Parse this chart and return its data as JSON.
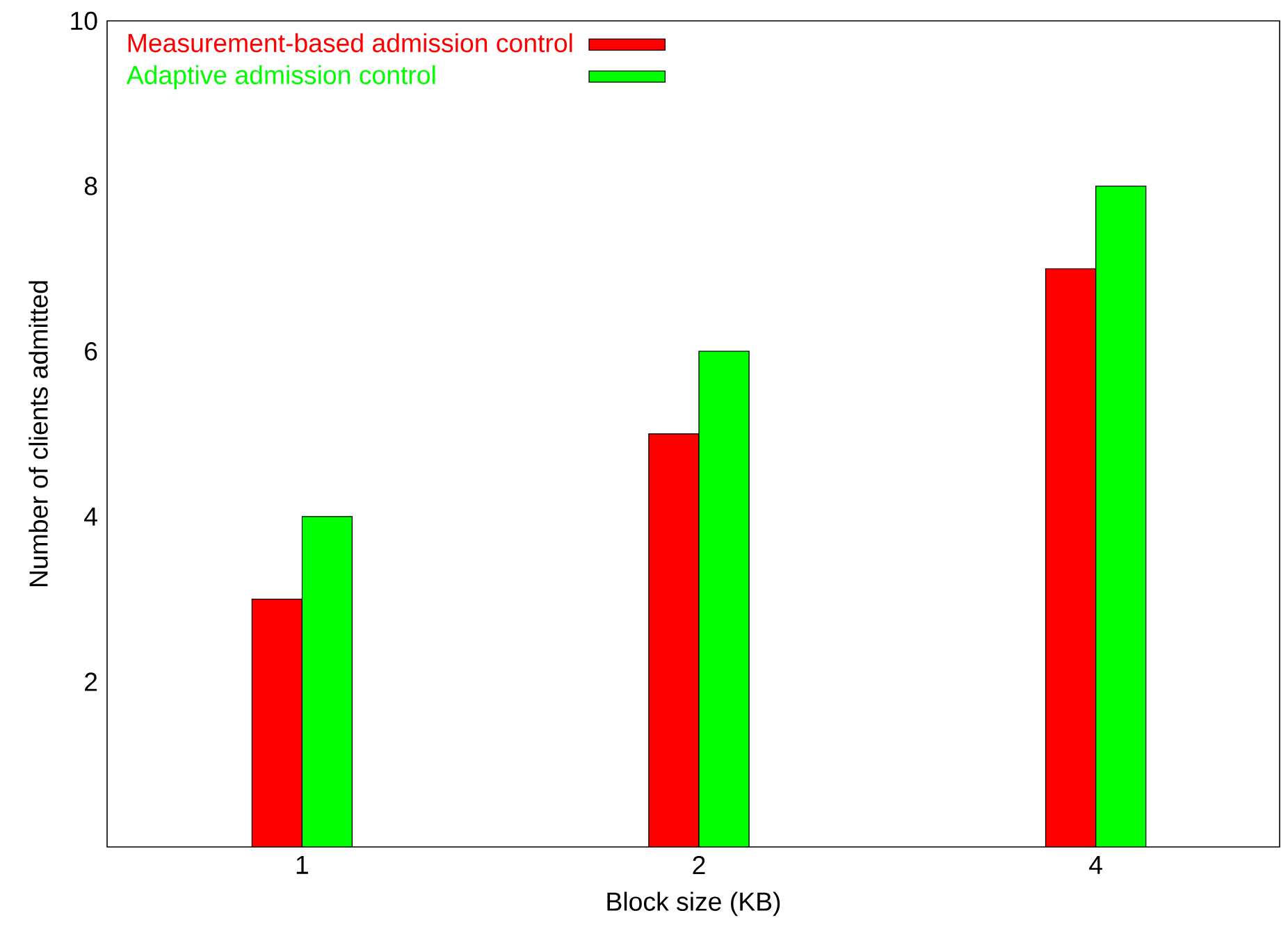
{
  "chart_data": {
    "type": "bar",
    "xlabel": "Block size (KB)",
    "ylabel": "Number of clients admitted",
    "categories": [
      "1",
      "2",
      "4"
    ],
    "series": [
      {
        "name": "Measurement-based admission control",
        "color": "#ff0000",
        "values": [
          3,
          5,
          7
        ]
      },
      {
        "name": "Adaptive admission control",
        "color": "#00ff00",
        "values": [
          4,
          6,
          8
        ]
      }
    ],
    "ylim": [
      0,
      10
    ],
    "yticks": [
      2,
      4,
      6,
      8,
      10
    ],
    "grid": false,
    "legend": "top left"
  }
}
